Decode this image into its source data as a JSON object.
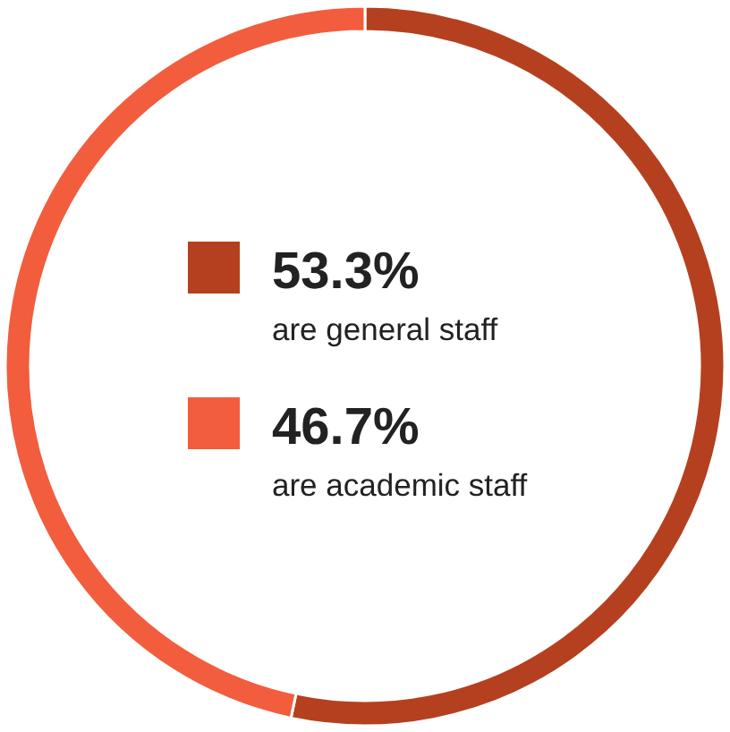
{
  "chart_data": {
    "type": "donut",
    "categories": [
      "are general staff",
      "are academic staff"
    ],
    "values": [
      53.3,
      46.7
    ],
    "value_labels": [
      "53.3%",
      "46.7%"
    ],
    "colors": [
      "#b5401f",
      "#f25d3e"
    ]
  }
}
